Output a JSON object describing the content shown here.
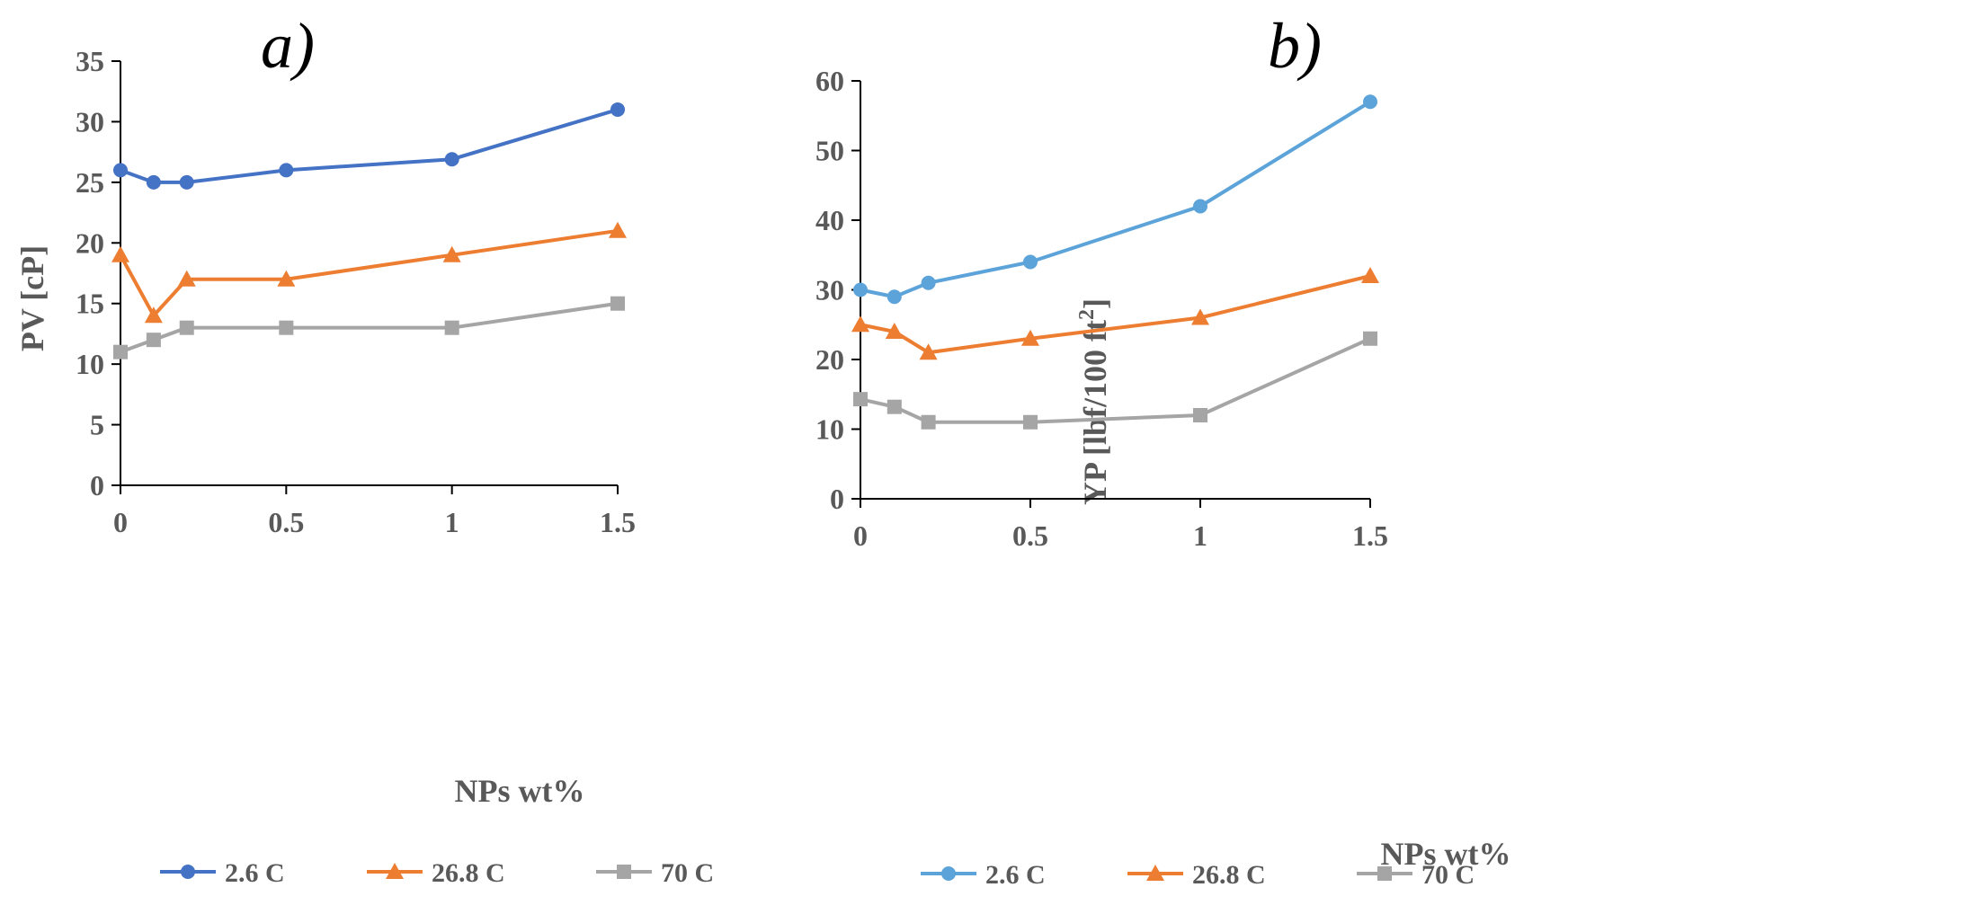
{
  "chart_data": [
    {
      "type": "line",
      "panel_label": "a)",
      "title": "",
      "xlabel": "NPs wt%",
      "ylabel": "PV [cP]",
      "x": [
        0,
        0.1,
        0.2,
        0.5,
        1,
        1.5
      ],
      "xlim": [
        0,
        1.5
      ],
      "ylim": [
        0,
        35
      ],
      "xticks": [
        "0",
        "0.5",
        "1",
        "1.5"
      ],
      "xtick_values": [
        0,
        0.5,
        1,
        1.5
      ],
      "yticks": [
        "0",
        "5",
        "10",
        "15",
        "20",
        "25",
        "30",
        "35"
      ],
      "ytick_values": [
        0,
        5,
        10,
        15,
        20,
        25,
        30,
        35
      ],
      "grid": false,
      "legend_position": "bottom",
      "series": [
        {
          "name": "2.6 C",
          "values": [
            26,
            25,
            25,
            26,
            26.9,
            31
          ],
          "color": "#4472c4",
          "marker": "circle"
        },
        {
          "name": "26.8 C",
          "values": [
            19,
            14,
            17,
            17,
            19,
            21
          ],
          "color": "#ed7d31",
          "marker": "triangle"
        },
        {
          "name": "70 C",
          "values": [
            11,
            12,
            13,
            13,
            13,
            15
          ],
          "color": "#a5a5a5",
          "marker": "square"
        }
      ]
    },
    {
      "type": "line",
      "panel_label": "b)",
      "title": "",
      "xlabel": "NPs wt%",
      "ylabel_main": "YP [lbf/100 ft",
      "ylabel_sup": "2",
      "ylabel_end": "]",
      "x": [
        0,
        0.1,
        0.2,
        0.5,
        1,
        1.5
      ],
      "xlim": [
        0,
        1.5
      ],
      "ylim": [
        0,
        60
      ],
      "xticks": [
        "0",
        "0.5",
        "1",
        "1.5"
      ],
      "xtick_values": [
        0,
        0.5,
        1,
        1.5
      ],
      "yticks": [
        "0",
        "10",
        "20",
        "30",
        "40",
        "50",
        "60"
      ],
      "ytick_values": [
        0,
        10,
        20,
        30,
        40,
        50,
        60
      ],
      "grid": false,
      "legend_position": "bottom",
      "series": [
        {
          "name": "2.6 C",
          "values": [
            30,
            29,
            31,
            34,
            42,
            57
          ],
          "color": "#5ba3d9",
          "marker": "circle"
        },
        {
          "name": "26.8 C",
          "values": [
            25,
            24,
            21,
            23,
            26,
            32
          ],
          "color": "#ed7d31",
          "marker": "triangle"
        },
        {
          "name": "70 C",
          "values": [
            14.3,
            13.2,
            11,
            11,
            12,
            23
          ],
          "color": "#a5a5a5",
          "marker": "square"
        }
      ]
    }
  ]
}
